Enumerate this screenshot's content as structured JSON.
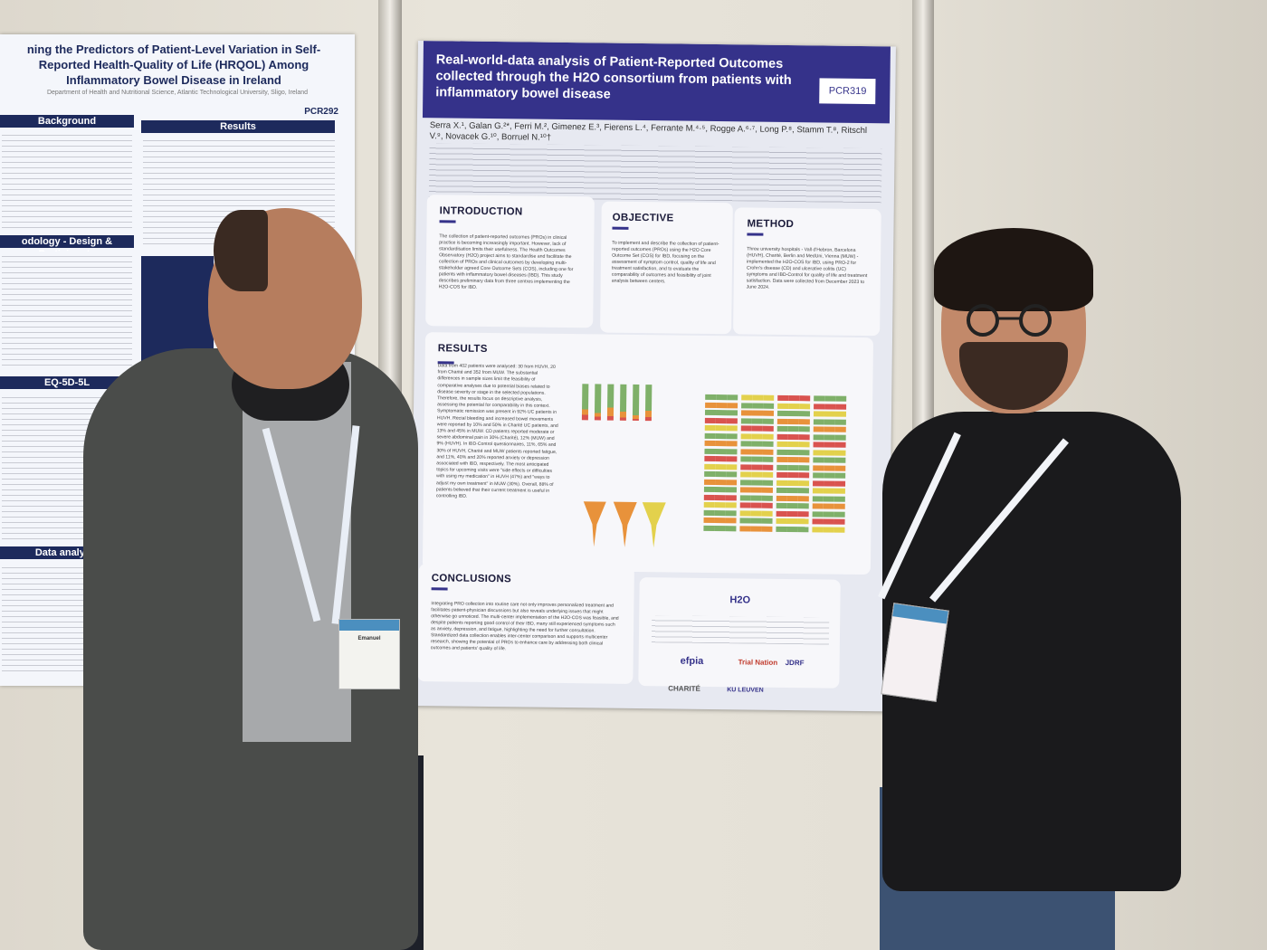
{
  "left_poster": {
    "title": "ning the Predictors of Patient-Level Variation in Self-Reported Health-Quality of Life (HRQOL) Among Inflammatory Bowel Disease in Ireland",
    "code": "PCR292",
    "headings": [
      "Background",
      "Results",
      "odology - Design & Participants",
      "EQ-5D-5L",
      "Data analysis"
    ]
  },
  "poster": {
    "title": "Real-world-data analysis of Patient-Reported Outcomes collected through the H2O consortium from patients with inflammatory bowel disease",
    "code": "PCR319",
    "authors": "Serra X.¹, Galan G.²*, Ferri M.², Gimenez E.³, Fierens L.⁴, Ferrante M.⁴·⁵, Rogge A.⁶·⁷, Long P.⁸, Stamm T.⁸, Ritschl V.⁹, Novacek G.¹⁰, Borruel N.¹⁰†",
    "sections": {
      "introduction": "INTRODUCTION",
      "objective": "OBJECTIVE",
      "method": "METHOD",
      "results": "RESULTS",
      "conclusions": "CONCLUSIONS"
    },
    "introduction_text": "The collection of patient-reported outcomes (PROs) in clinical practice is becoming increasingly important. However, lack of standardisation limits their usefulness. The Health Outcomes Observatory (H2O) project aims to standardise and facilitate the collection of PROs and clinical outcomes by developing multi-stakeholder agreed Core Outcome Sets (COS), including one for patients with inflammatory bowel diseases (IBD). This study describes preliminary data from three centres implementing the H2O-COS for IBD.",
    "objective_text": "To implement and describe the collection of patient-reported outcomes (PROs) using the H2O Core Outcome Set (COS) for IBD, focusing on the assessment of symptom control, quality of life and treatment satisfaction, and to evaluate the comparability of outcomes and feasibility of joint analysis between centers.",
    "method_text": "Three university hospitals - Vall d'Hebron, Barcelona (HUVH), Charité, Berlin and MedUni, Vienna (MUW) - implemented the H2O-COS for IBD, using PRO-2 for Crohn's disease (CD) and ulcerative colitis (UC) symptoms and IBD-Control for quality of life and treatment satisfaction. Data were collected from December 2023 to June 2024.",
    "results_text": "Data from 402 patients were analysed: 30 from HUVH, 20 from Charité and 352 from MUW. The substantial differences in sample sizes limit the feasibility of comparative analyses due to potential biases related to disease severity or stage in the selected populations. Therefore, the results focus on descriptive analysis, assessing the potential for comparability in this context. Symptomatic remission was present in 92% UC patients in HUVH. Rectal bleeding and increased bowel movements were reported by 10% and 50% in Charité UC patients, and 13% and 45% in MUW. CD patients reported moderate or severe abdominal pain in 30% (Charité), 12% (MUW) and 9% (HUVH). In IBD-Control questionnaires, 11%, 65% and 30% of HUVH, Charité and MUW patients reported fatigue, and 11%, 40% and 20% reported anxiety or depression associated with IBD, respectively. The most anticipated topics for upcoming visits were \"side effects or difficulties with using my medication\" in HUVH (47%) and \"ways to adjust my own treatment\" in MUW (30%). Overall, 88% of patients believed that their current treatment is useful in controlling IBD.",
    "conclusions_text": "Integrating PRO collection into routine care not only improves personalized treatment and facilitates patient-physician discussions but also reveals underlying issues that might otherwise go unnoticed. The multi-center implementation of the H2O-COS was feasible, and despite patients reporting good control of their IBD, many still experienced symptoms such as anxiety, depression, and fatigue, highlighting the need for further consultation. Standardized data collection enables inter-center comparison and supports multicenter research, showing the potential of PROs to enhance care by addressing both clinical outcomes and patients' quality of life.",
    "logos": [
      "H2O",
      "efpia",
      "Trial Nation",
      "JDRF",
      "CHARITÉ",
      "KU LEUVEN"
    ]
  },
  "badges": {
    "left": "Emanuel",
    "right": ""
  },
  "colors": {
    "poster_header": "#35328a",
    "heat_green": "#7fb069",
    "heat_yellow": "#e3d14c",
    "heat_orange": "#e8923b",
    "heat_red": "#d9534f"
  }
}
